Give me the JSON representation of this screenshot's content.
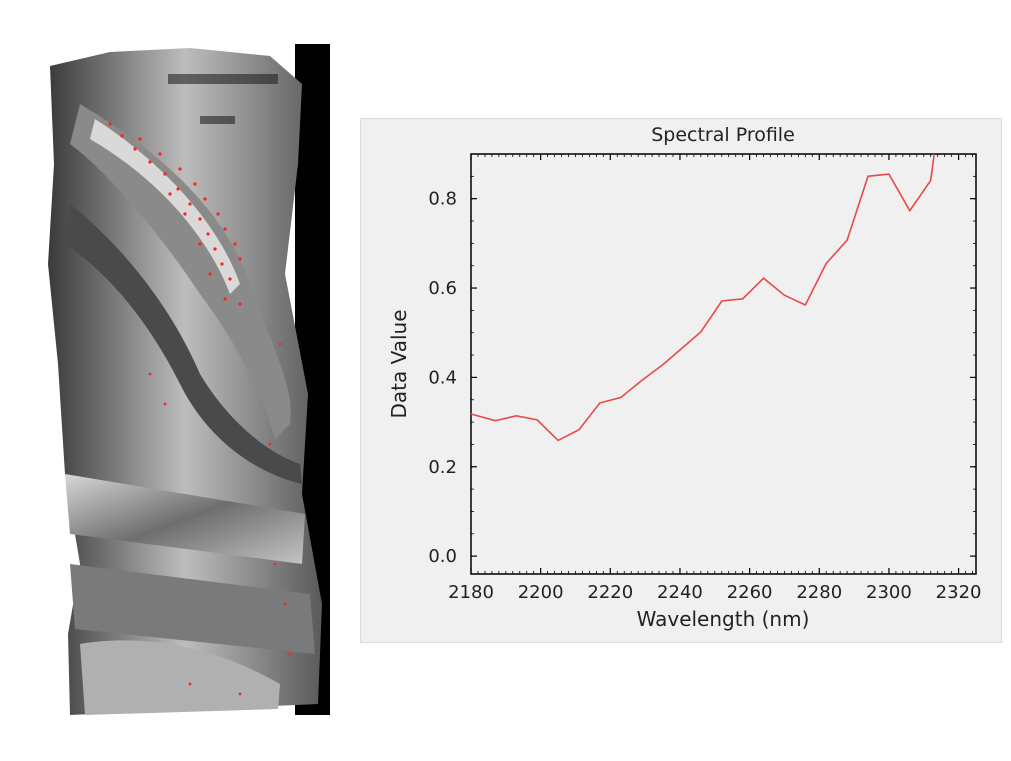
{
  "image": {
    "description_icon": "hyperspectral-false-color-image",
    "background_color": "#000000",
    "highlight_color": "#ff2020"
  },
  "chart_data": {
    "type": "line",
    "title": "Spectral Profile",
    "xlabel": "Wavelength (nm)",
    "ylabel": "Data Value",
    "xlim": [
      2180,
      2325
    ],
    "ylim": [
      -0.04,
      0.9
    ],
    "xticks": [
      2180,
      2200,
      2220,
      2240,
      2260,
      2280,
      2300,
      2320
    ],
    "yticks": [
      0.0,
      0.2,
      0.4,
      0.6,
      0.8
    ],
    "ytick_labels": [
      "0.0",
      "0.2",
      "0.4",
      "0.6",
      "0.8"
    ],
    "grid": false,
    "legend": "none",
    "line_color": "#e84a4a",
    "x": [
      2180,
      2187,
      2193,
      2199,
      2205,
      2211,
      2217,
      2223,
      2229,
      2235,
      2241,
      2246,
      2252,
      2258,
      2264,
      2270,
      2276,
      2282,
      2288,
      2294,
      2300,
      2306,
      2312,
      2313
    ],
    "y": [
      0.318,
      0.303,
      0.314,
      0.305,
      0.259,
      0.283,
      0.343,
      0.355,
      0.393,
      0.428,
      0.468,
      0.502,
      0.571,
      0.576,
      0.622,
      0.584,
      0.562,
      0.655,
      0.707,
      0.85,
      0.855,
      0.773,
      0.841,
      0.9
    ]
  }
}
